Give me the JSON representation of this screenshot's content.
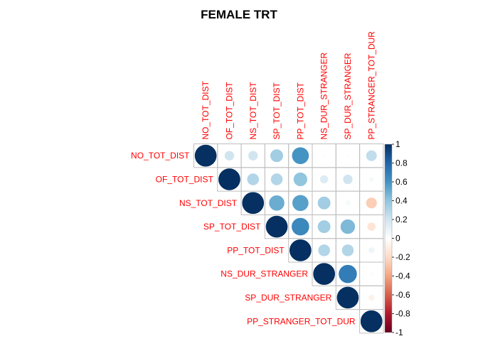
{
  "chart_data": {
    "type": "heatmap",
    "title": "FEMALE TRT",
    "variables": [
      "NO_TOT_DIST",
      "OF_TOT_DIST",
      "NS_TOT_DIST",
      "SP_TOT_DIST",
      "PP_TOT_DIST",
      "NS_DUR_STRANGER",
      "SP_DUR_STRANGER",
      "PP_STRANGER_TOT_DUR"
    ],
    "matrix": [
      [
        1,
        0.2,
        0.2,
        0.35,
        0.6,
        0.02,
        0.02,
        0.25
      ],
      [
        0.2,
        1,
        0.3,
        0.3,
        0.4,
        0.15,
        0.2,
        0.05
      ],
      [
        0.2,
        0.3,
        1,
        0.5,
        0.55,
        0.35,
        0.05,
        -0.25
      ],
      [
        0.35,
        0.3,
        0.5,
        1,
        0.65,
        0.35,
        0.45,
        -0.15
      ],
      [
        0.6,
        0.4,
        0.55,
        0.65,
        1,
        0.3,
        0.3,
        0.08
      ],
      [
        0.02,
        0.15,
        0.35,
        0.35,
        0.3,
        1,
        0.7,
        0.03
      ],
      [
        0.02,
        0.2,
        0.05,
        0.45,
        0.3,
        0.7,
        1,
        -0.08
      ],
      [
        0.25,
        0.05,
        -0.25,
        -0.15,
        0.08,
        0.03,
        -0.08,
        1
      ]
    ],
    "show": "upper-triangle",
    "colorbar": {
      "range": [
        -1,
        1
      ],
      "tick_labels": [
        "1",
        "0.8",
        "0.6",
        "0.4",
        "0.2",
        "0",
        "-0.2",
        "-0.4",
        "-0.6",
        "-0.8",
        "-1"
      ]
    },
    "colors": {
      "positive": "#053061",
      "negative": "#67001F",
      "label": "#ff0000",
      "grid": "#bebebe"
    }
  }
}
